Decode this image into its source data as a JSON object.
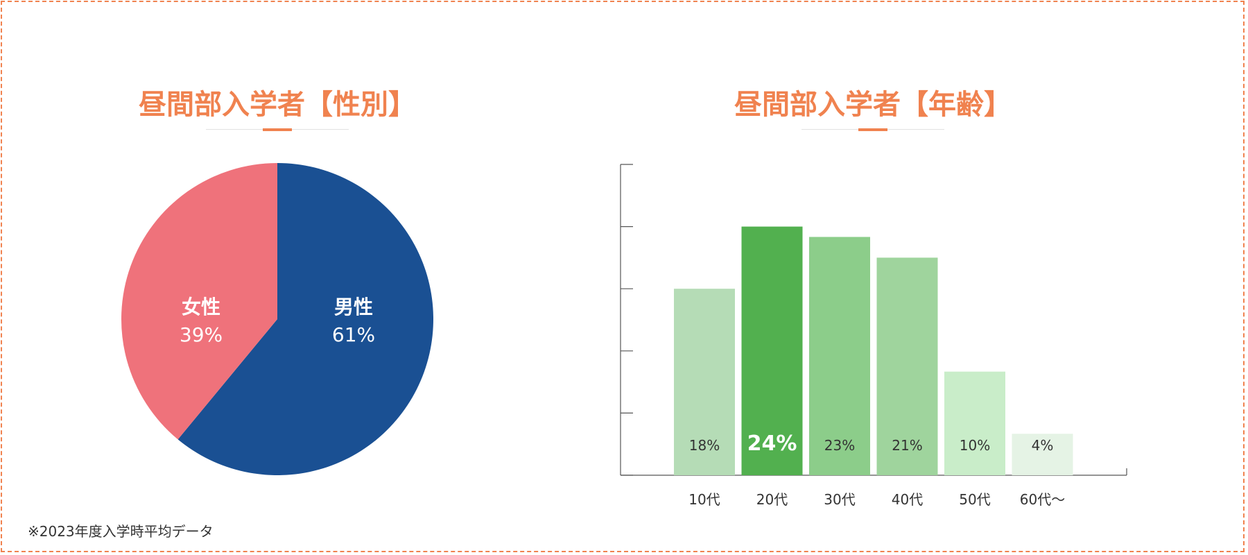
{
  "page": {
    "border_color": "#f0824f",
    "note": "※2023年度入学時平均データ"
  },
  "chart_data": [
    {
      "type": "pie",
      "title": "昼間部入学者【性別】",
      "slices": [
        {
          "label": "男性",
          "value": 61,
          "value_label": "61%",
          "color": "#1a5093"
        },
        {
          "label": "女性",
          "value": 39,
          "value_label": "39%",
          "color": "#ef727b"
        }
      ]
    },
    {
      "type": "bar",
      "title": "昼間部入学者【年齢】",
      "categories": [
        "10代",
        "20代",
        "30代",
        "40代",
        "50代",
        "60代〜"
      ],
      "values": [
        18,
        24,
        23,
        21,
        10,
        4
      ],
      "value_labels": [
        "18%",
        "24%",
        "23%",
        "21%",
        "10%",
        "4%"
      ],
      "colors": [
        "#b5dcb6",
        "#52b04f",
        "#8ccd8a",
        "#9fd49d",
        "#c9edc9",
        "#e5f3e5"
      ],
      "highlight_index": 1,
      "ylim": [
        0,
        30
      ],
      "xlabel": "",
      "ylabel": ""
    }
  ]
}
